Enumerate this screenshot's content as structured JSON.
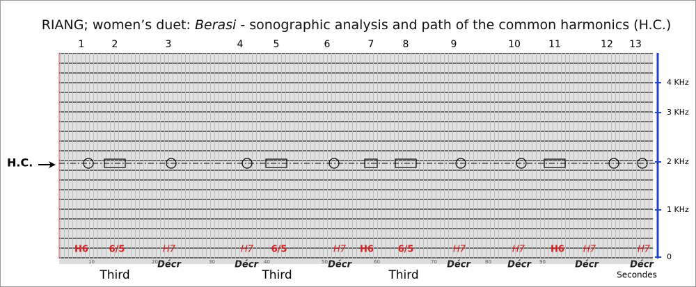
{
  "title": {
    "prefix": "RIANG; women’s duet: ",
    "italic": "Berasi",
    "suffix": " - sonographic analysis and path of the common harmonics (H.C.)"
  },
  "segments": [
    "1",
    "2",
    "3",
    "4",
    "5",
    "6",
    "7",
    "8",
    "9",
    "10",
    "11",
    "12",
    "13"
  ],
  "harmonic_labels": [
    "H6",
    "6/5",
    "H7",
    "H7",
    "6/5",
    "H7",
    "H6",
    "6/5",
    "H7",
    "H7",
    "H6",
    "H7",
    "H7"
  ],
  "decr_labels": [
    "Décr",
    "Décr",
    "Décr",
    "Décr",
    "Décr",
    "Décr",
    "Décr"
  ],
  "interval_labels": [
    "Third",
    "Third",
    "Third"
  ],
  "hc_label": "H.C.",
  "frequency_axis": [
    "4 KHz",
    "3 KHz",
    "2 KHz",
    "1 KHz",
    "0"
  ],
  "time_axis": {
    "ticks": [
      "10",
      "20",
      "30",
      "40",
      "50",
      "60",
      "70",
      "80",
      "90"
    ],
    "unit": "Secondes"
  }
}
